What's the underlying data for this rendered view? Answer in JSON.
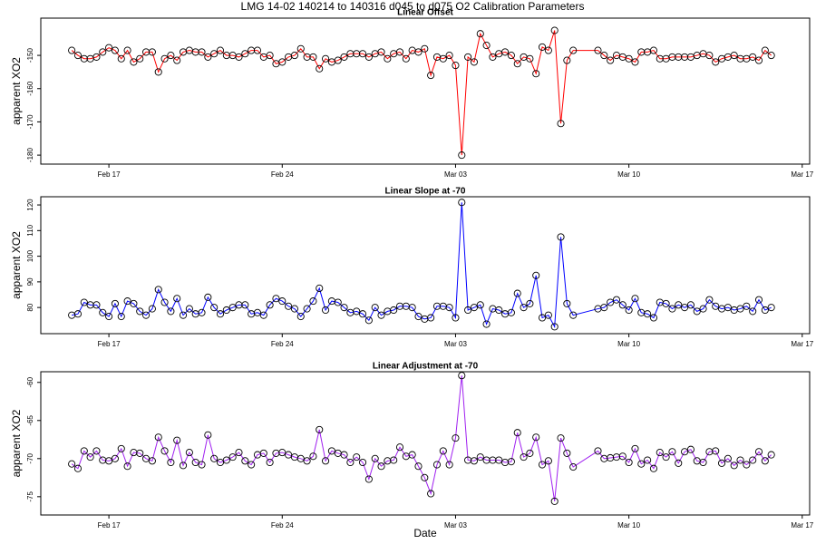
{
  "title": "LMG  14-02    140214 to 140316    d045 to d075   O2 Calibration Parameters",
  "chart_data": [
    {
      "type": "line",
      "title": "Linear Offset",
      "y_label": "apparent XO2",
      "color": "#ff0000",
      "marker_color": "#000000",
      "xlim": [
        45.25,
        76.3
      ],
      "ylim": [
        -182.7,
        -138.8
      ],
      "xticks": [
        {
          "value": 48,
          "label": "Feb 17"
        },
        {
          "value": 55,
          "label": "Feb 24"
        },
        {
          "value": 62,
          "label": "Mar 03"
        },
        {
          "value": 69,
          "label": "Mar 10"
        },
        {
          "value": 76,
          "label": "Mar 17"
        }
      ],
      "yticks": [
        -180,
        -170,
        -160,
        -150
      ],
      "x": [
        46.5,
        46.75,
        47,
        47.25,
        47.5,
        47.75,
        48,
        48.25,
        48.5,
        48.75,
        49,
        49.25,
        49.5,
        49.75,
        50,
        50.25,
        50.5,
        50.75,
        51,
        51.25,
        51.5,
        51.75,
        52,
        52.25,
        52.5,
        52.75,
        53,
        53.25,
        53.5,
        53.75,
        54,
        54.25,
        54.5,
        54.75,
        55,
        55.25,
        55.5,
        55.75,
        56,
        56.25,
        56.5,
        56.75,
        57,
        57.25,
        57.5,
        57.75,
        58,
        58.25,
        58.5,
        58.75,
        59,
        59.25,
        59.5,
        59.75,
        60,
        60.25,
        60.5,
        60.75,
        61,
        61.25,
        61.5,
        61.75,
        62,
        62.25,
        62.5,
        62.75,
        63,
        63.25,
        63.5,
        63.75,
        64,
        64.25,
        64.5,
        64.75,
        65,
        65.25,
        65.5,
        65.75,
        66,
        66.25,
        66.5,
        66.75,
        67.75,
        68,
        68.25,
        68.5,
        68.75,
        69,
        69.25,
        69.5,
        69.75,
        70,
        70.25,
        70.5,
        70.75,
        71,
        71.25,
        71.5,
        71.75,
        72,
        72.25,
        72.5,
        72.75,
        73,
        73.25,
        73.5,
        73.75,
        74,
        74.25,
        74.5,
        74.75
      ],
      "values": [
        -148.5,
        -150,
        -151,
        -151,
        -150.5,
        -149,
        -147.7,
        -148.5,
        -151,
        -148.5,
        -152,
        -151,
        -149,
        -149,
        -155,
        -151,
        -150,
        -151.5,
        -149,
        -148.5,
        -149,
        -149,
        -150.5,
        -149.5,
        -148.5,
        -150,
        -150,
        -150.5,
        -149.5,
        -148.5,
        -148.5,
        -150.5,
        -150,
        -152.5,
        -152,
        -150.5,
        -150,
        -148,
        -150.5,
        -150.5,
        -154,
        -151,
        -152,
        -151.5,
        -150.5,
        -149.5,
        -149.5,
        -149.5,
        -150.5,
        -149.5,
        -149,
        -151,
        -149.5,
        -149,
        -151,
        -148.5,
        -149,
        -148,
        -156,
        -150.5,
        -151,
        -150,
        -153,
        -180,
        -150.5,
        -152,
        -143.5,
        -147,
        -150.5,
        -149.5,
        -149,
        -150,
        -152.5,
        -150.5,
        -151,
        -155.5,
        -147.5,
        -148.5,
        -142.5,
        -170.5,
        -151.5,
        -148.5,
        -148.5,
        -150,
        -151.5,
        -150,
        -150.5,
        -151,
        -152,
        -149,
        -149,
        -148.5,
        -151,
        -151,
        -150.5,
        -150.5,
        -150.5,
        -150.5,
        -150,
        -149.5,
        -150,
        -152,
        -151,
        -150.5,
        -150,
        -151,
        -151,
        -150.5,
        -151.5,
        -148.5,
        -150
      ]
    },
    {
      "type": "line",
      "title": "Linear Slope at -70",
      "y_label": "apparent XO2",
      "color": "#0000ff",
      "marker_color": "#000000",
      "xlim": [
        45.25,
        76.3
      ],
      "ylim": [
        69.8,
        123.2
      ],
      "xticks": [
        {
          "value": 48,
          "label": "Feb 17"
        },
        {
          "value": 55,
          "label": "Feb 24"
        },
        {
          "value": 62,
          "label": "Mar 03"
        },
        {
          "value": 69,
          "label": "Mar 10"
        },
        {
          "value": 76,
          "label": "Mar 17"
        }
      ],
      "yticks": [
        80,
        90,
        100,
        110,
        120
      ],
      "x": [
        46.5,
        46.75,
        47,
        47.25,
        47.5,
        47.75,
        48,
        48.25,
        48.5,
        48.75,
        49,
        49.25,
        49.5,
        49.75,
        50,
        50.25,
        50.5,
        50.75,
        51,
        51.25,
        51.5,
        51.75,
        52,
        52.25,
        52.5,
        52.75,
        53,
        53.25,
        53.5,
        53.75,
        54,
        54.25,
        54.5,
        54.75,
        55,
        55.25,
        55.5,
        55.75,
        56,
        56.25,
        56.5,
        56.75,
        57,
        57.25,
        57.5,
        57.75,
        58,
        58.25,
        58.5,
        58.75,
        59,
        59.25,
        59.5,
        59.75,
        60,
        60.25,
        60.5,
        60.75,
        61,
        61.25,
        61.5,
        61.75,
        62,
        62.25,
        62.5,
        62.75,
        63,
        63.25,
        63.5,
        63.75,
        64,
        64.25,
        64.5,
        64.75,
        65,
        65.25,
        65.5,
        65.75,
        66,
        66.25,
        66.5,
        66.75,
        67.75,
        68,
        68.25,
        68.5,
        68.75,
        69,
        69.25,
        69.5,
        69.75,
        70,
        70.25,
        70.5,
        70.75,
        71,
        71.25,
        71.5,
        71.75,
        72,
        72.25,
        72.5,
        72.75,
        73,
        73.25,
        73.5,
        73.75,
        74,
        74.25,
        74.5,
        74.75
      ],
      "values": [
        77,
        77.5,
        82,
        81,
        81,
        78,
        76.5,
        81.5,
        76.5,
        82.5,
        81.5,
        78.5,
        77,
        79.5,
        87,
        82,
        78.5,
        83.5,
        77,
        79.5,
        77.5,
        78,
        84,
        80,
        77.5,
        79,
        80,
        81,
        81,
        77.5,
        78,
        77,
        81,
        83.5,
        82.5,
        80.5,
        79.5,
        76.5,
        79.5,
        82.5,
        87.5,
        79,
        82.5,
        82,
        80,
        78,
        78.5,
        77.5,
        75,
        80,
        77,
        78.5,
        79,
        80.5,
        80.5,
        80,
        76.5,
        75.5,
        76,
        80.5,
        80.5,
        80,
        76,
        121,
        79,
        80,
        81,
        73.5,
        79.5,
        79,
        77.5,
        78,
        85.5,
        80,
        81.5,
        92.5,
        76,
        77,
        72.5,
        107.5,
        81.5,
        77,
        79.5,
        80,
        82,
        83,
        81,
        79,
        83.5,
        78,
        77.5,
        76,
        82,
        81.5,
        79.5,
        81,
        80,
        81,
        78.5,
        79.5,
        83,
        80.5,
        79.5,
        80,
        79,
        79.5,
        80.5,
        78.5,
        83,
        79,
        80
      ]
    },
    {
      "type": "line",
      "title": "Linear Adjustment at -70",
      "y_label": "apparent XO2",
      "x_label": "Date",
      "color": "#a020f0",
      "marker_color": "#000000",
      "xlim": [
        45.25,
        76.3
      ],
      "ylim": [
        -77.4,
        -58.6
      ],
      "xticks": [
        {
          "value": 48,
          "label": "Feb 17"
        },
        {
          "value": 55,
          "label": "Feb 24"
        },
        {
          "value": 62,
          "label": "Mar 03"
        },
        {
          "value": 69,
          "label": "Mar 10"
        },
        {
          "value": 76,
          "label": "Mar 17"
        }
      ],
      "yticks": [
        -75,
        -70,
        -65,
        -60
      ],
      "x": [
        46.5,
        46.75,
        47,
        47.25,
        47.5,
        47.75,
        48,
        48.25,
        48.5,
        48.75,
        49,
        49.25,
        49.5,
        49.75,
        50,
        50.25,
        50.5,
        50.75,
        51,
        51.25,
        51.5,
        51.75,
        52,
        52.25,
        52.5,
        52.75,
        53,
        53.25,
        53.5,
        53.75,
        54,
        54.25,
        54.5,
        54.75,
        55,
        55.25,
        55.5,
        55.75,
        56,
        56.25,
        56.5,
        56.75,
        57,
        57.25,
        57.5,
        57.75,
        58,
        58.25,
        58.5,
        58.75,
        59,
        59.25,
        59.5,
        59.75,
        60,
        60.25,
        60.5,
        60.75,
        61,
        61.25,
        61.5,
        61.75,
        62,
        62.25,
        62.5,
        62.75,
        63,
        63.25,
        63.5,
        63.75,
        64,
        64.25,
        64.5,
        64.75,
        65,
        65.25,
        65.5,
        65.75,
        66,
        66.25,
        66.5,
        66.75,
        67.75,
        68,
        68.25,
        68.5,
        68.75,
        69,
        69.25,
        69.5,
        69.75,
        70,
        70.25,
        70.5,
        70.75,
        71,
        71.25,
        71.5,
        71.75,
        72,
        72.25,
        72.5,
        72.75,
        73,
        73.25,
        73.5,
        73.75,
        74,
        74.25,
        74.5,
        74.75
      ],
      "values": [
        -70.7,
        -71.3,
        -69,
        -69.8,
        -69,
        -70.2,
        -70.3,
        -70,
        -68.7,
        -71,
        -69.2,
        -69.3,
        -70,
        -70.3,
        -67.2,
        -69,
        -70.5,
        -67.6,
        -70.9,
        -69.2,
        -70.5,
        -70.8,
        -66.9,
        -70,
        -70.5,
        -70.2,
        -69.8,
        -69.2,
        -70.3,
        -70.8,
        -69.5,
        -69.3,
        -70.5,
        -69.3,
        -69.2,
        -69.5,
        -69.8,
        -70,
        -70.3,
        -69.7,
        -66.2,
        -70.3,
        -69,
        -69.3,
        -69.5,
        -70.5,
        -69.8,
        -70.5,
        -72.7,
        -70,
        -71,
        -70.3,
        -70.2,
        -68.5,
        -69.7,
        -69.5,
        -71,
        -72.5,
        -74.6,
        -70.8,
        -69,
        -70.8,
        -67.3,
        -59.1,
        -70.2,
        -70.3,
        -69.8,
        -70.2,
        -70.2,
        -70.2,
        -70.5,
        -70.4,
        -66.6,
        -69.8,
        -69.3,
        -67.2,
        -70.8,
        -70.3,
        -75.6,
        -67.3,
        -69.3,
        -71.1,
        -69,
        -70,
        -69.9,
        -69.8,
        -69.7,
        -70.5,
        -68.7,
        -70.7,
        -70.2,
        -71.3,
        -69.2,
        -69.8,
        -69.1,
        -70.6,
        -69.1,
        -68.8,
        -70.3,
        -70.5,
        -69.1,
        -69,
        -70.6,
        -70,
        -70.9,
        -70.2,
        -70.8,
        -70.2,
        -69.1,
        -70.3,
        -69.5
      ]
    }
  ]
}
